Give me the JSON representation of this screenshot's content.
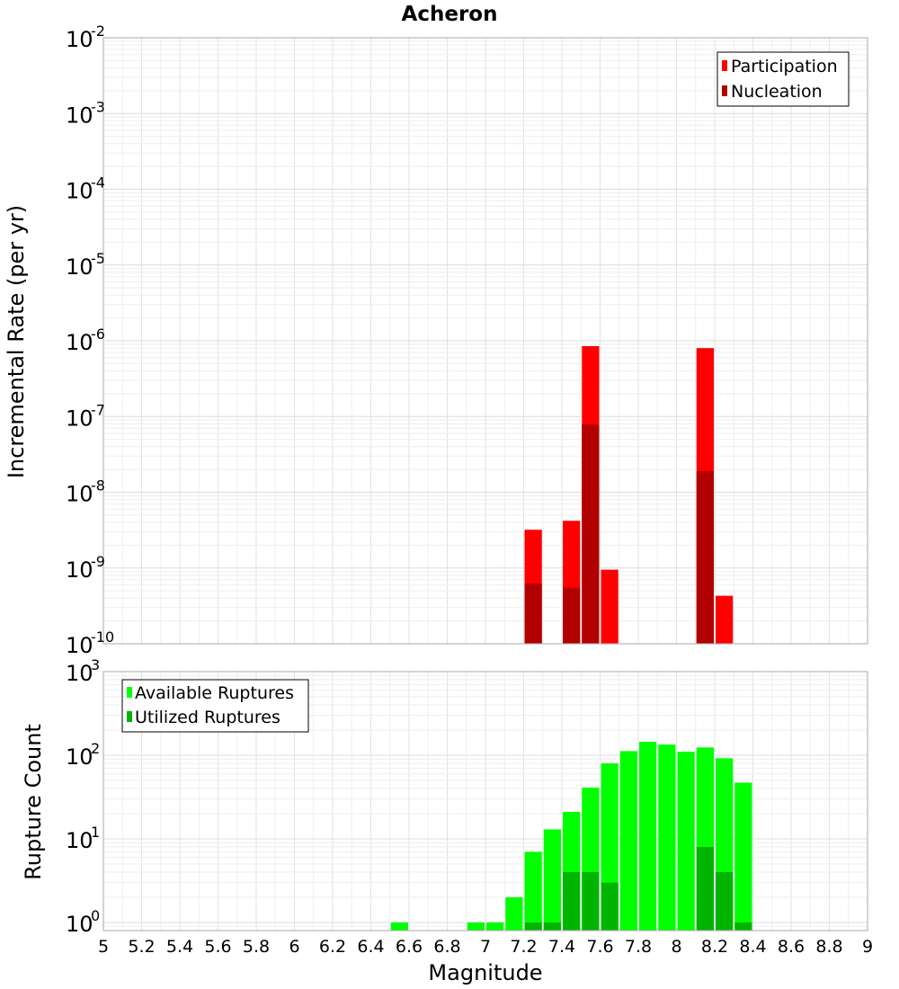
{
  "chart_data": [
    {
      "type": "bar",
      "title": "Acheron",
      "xlabel": "",
      "ylabel": "Incremental Rate (per yr)",
      "y_scale": "log",
      "ylim": [
        1e-10,
        0.01
      ],
      "xlim": [
        5,
        9
      ],
      "bin_width": 0.1,
      "grid": true,
      "legend": {
        "placement": "top-right"
      },
      "y_ticks": [
        {
          "base": "10",
          "exp": "-10",
          "value": 1e-10
        },
        {
          "base": "10",
          "exp": "-9",
          "value": 1e-09
        },
        {
          "base": "10",
          "exp": "-8",
          "value": 1e-08
        },
        {
          "base": "10",
          "exp": "-7",
          "value": 1e-07
        },
        {
          "base": "10",
          "exp": "-6",
          "value": 1e-06
        },
        {
          "base": "10",
          "exp": "-5",
          "value": 1e-05
        },
        {
          "base": "10",
          "exp": "-4",
          "value": 0.0001
        },
        {
          "base": "10",
          "exp": "-3",
          "value": 0.001
        },
        {
          "base": "10",
          "exp": "-2",
          "value": 0.01
        }
      ],
      "series": [
        {
          "name": "Participation",
          "color": "#ff0000",
          "x": [
            7.25,
            7.45,
            7.55,
            7.65,
            8.15,
            8.25
          ],
          "values": [
            3.2e-09,
            4.2e-09,
            8.5e-07,
            9.5e-10,
            8e-07,
            4.3e-10
          ]
        },
        {
          "name": "Nucleation",
          "color": "#b20000",
          "x": [
            7.25,
            7.45,
            7.55,
            8.15
          ],
          "values": [
            6.2e-10,
            5.5e-10,
            7.8e-08,
            1.9e-08
          ]
        }
      ]
    },
    {
      "type": "bar",
      "title": "",
      "xlabel": "Magnitude",
      "ylabel": "Rupture Count",
      "y_scale": "log",
      "ylim": [
        0.8,
        1000
      ],
      "xlim": [
        5,
        9
      ],
      "bin_width": 0.1,
      "grid": true,
      "legend": {
        "placement": "top-left"
      },
      "y_ticks": [
        {
          "base": "10",
          "exp": "0",
          "value": 1
        },
        {
          "base": "10",
          "exp": "1",
          "value": 10
        },
        {
          "base": "10",
          "exp": "2",
          "value": 100
        },
        {
          "base": "10",
          "exp": "3",
          "value": 1000
        }
      ],
      "x_ticks": [
        "5",
        "5.2",
        "5.4",
        "5.6",
        "5.8",
        "6",
        "6.2",
        "6.4",
        "6.6",
        "6.8",
        "7",
        "7.2",
        "7.4",
        "7.6",
        "7.8",
        "8",
        "8.2",
        "8.4",
        "8.6",
        "8.8",
        "9"
      ],
      "series": [
        {
          "name": "Available Ruptures",
          "color": "#00ff00",
          "x": [
            6.55,
            6.95,
            7.05,
            7.15,
            7.25,
            7.35,
            7.45,
            7.55,
            7.65,
            7.75,
            7.85,
            7.95,
            8.05,
            8.15,
            8.25,
            8.35
          ],
          "values": [
            1,
            1,
            1,
            2,
            7,
            13,
            21,
            41,
            80,
            112,
            145,
            134,
            110,
            124,
            92,
            47
          ]
        },
        {
          "name": "Utilized Ruptures",
          "color": "#00b400",
          "x": [
            7.25,
            7.35,
            7.45,
            7.55,
            7.65,
            8.15,
            8.25,
            8.35
          ],
          "values": [
            1,
            1,
            4,
            4,
            3,
            8,
            4,
            1
          ]
        }
      ]
    }
  ]
}
